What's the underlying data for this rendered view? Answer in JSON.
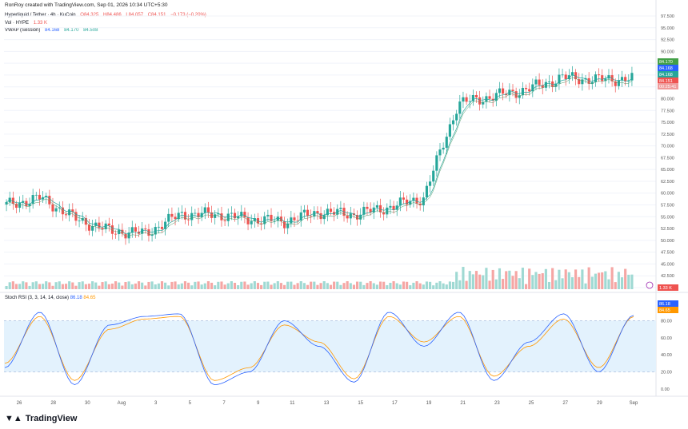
{
  "header": {
    "created_by": "RonRoy created with TradingView.com, Sep 01, 2026 10:34 UTC+5:30"
  },
  "symbol": {
    "name": "Hyperliquid / Tether · 4h · KuCoin",
    "open": "O84.325",
    "high": "H84.486",
    "low": "L84.057",
    "close": "C84.151",
    "change": "−0.173 (−0.20%)"
  },
  "volume_legend": {
    "label": "Vol · HYPE",
    "value": "1.33 K"
  },
  "vwap_legend": {
    "label": "VWAP (Session)",
    "v1": "84.168",
    "v2": "84.170",
    "v3": "84.508"
  },
  "rsi_legend": {
    "label": "Stoch RSI (3, 3, 14, 14, close)",
    "k": "86.18",
    "d": "84.65"
  },
  "price_axis_labels": [
    "97.500",
    "95.000",
    "92.500",
    "90.000",
    "87.500",
    "85.000",
    "82.500",
    "80.000",
    "77.500",
    "75.000",
    "72.500",
    "70.000",
    "67.500",
    "65.000",
    "62.500",
    "60.000",
    "57.500",
    "55.000",
    "52.500",
    "50.000",
    "47.500",
    "45.000",
    "42.500",
    "40.000"
  ],
  "price_badges": {
    "b1": "84.170",
    "b2": "84.168",
    "b3": "84.168",
    "b4": "84.151",
    "b5": "00:25:41"
  },
  "volume_badge": "1.33 K",
  "rsi_axis_labels": [
    "80.00",
    "60.00",
    "40.00",
    "20.00",
    "0.00"
  ],
  "rsi_badges": {
    "k": "86.18",
    "d": "84.65"
  },
  "x_axis_labels": [
    "26",
    "28",
    "30",
    "Aug",
    "3",
    "5",
    "7",
    "9",
    "11",
    "13",
    "15",
    "17",
    "19",
    "21",
    "23",
    "25",
    "27",
    "29",
    "Sep"
  ],
  "brand": {
    "name": "TradingView"
  },
  "colors": {
    "up": "#26a69a",
    "down": "#ef5350",
    "vwap": "#26a69a",
    "k_line": "#2962ff",
    "d_line": "#ff9800",
    "rsi_band": "#e3f2fd"
  },
  "chart_data": {
    "type": "line",
    "title": "Hyperliquid / Tether · 4h · KuCoin",
    "price_ylim": [
      40,
      97.5
    ],
    "x": [
      "26",
      "28",
      "30",
      "Aug",
      "3",
      "5",
      "7",
      "9",
      "11",
      "13",
      "15",
      "17",
      "19",
      "21",
      "23",
      "25",
      "27",
      "29",
      "Sep"
    ],
    "series": [
      {
        "name": "HYPE/USDT close",
        "values": [
          57.5,
          59.0,
          54.5,
          52.0,
          51.5,
          55.5,
          55.5,
          54.5,
          54.0,
          56.0,
          55.5,
          57.0,
          59.0,
          79.0,
          80.5,
          82.0,
          84.5,
          84.0,
          84.2
        ]
      },
      {
        "name": "Stoch RSI K",
        "values": [
          25,
          90,
          5,
          75,
          85,
          88,
          5,
          20,
          80,
          50,
          8,
          90,
          50,
          90,
          10,
          55,
          88,
          20,
          86.18
        ]
      },
      {
        "name": "Stoch RSI D",
        "values": [
          30,
          85,
          10,
          70,
          82,
          85,
          10,
          25,
          75,
          55,
          12,
          85,
          55,
          85,
          15,
          50,
          82,
          25,
          84.65
        ]
      }
    ],
    "volume_spikes": [
      {
        "x": "10",
        "value": 45.0
      },
      {
        "x": "22",
        "value": 46.5
      }
    ],
    "rsi_ylim": [
      0,
      100
    ]
  }
}
